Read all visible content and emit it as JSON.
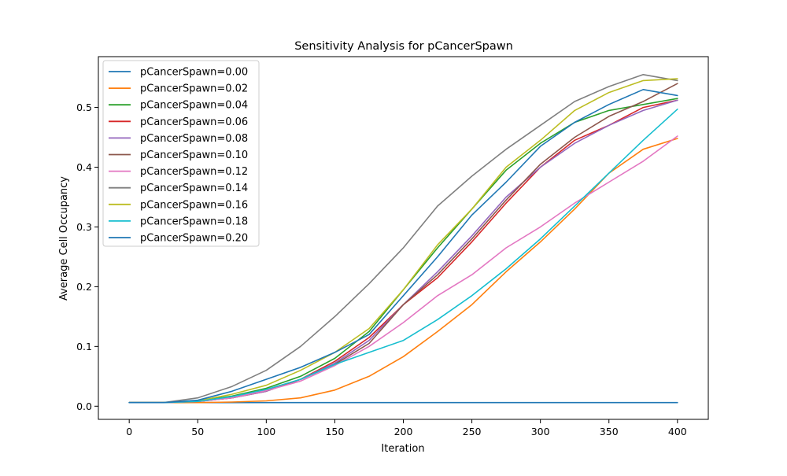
{
  "chart_data": {
    "type": "line",
    "title": "Sensitivity Analysis for pCancerSpawn",
    "xlabel": "Iteration",
    "ylabel": "Average Cell Occupancy",
    "xlim": [
      -22.5,
      422.5
    ],
    "ylim": [
      -0.022,
      0.585
    ],
    "xticks": [
      0,
      50,
      100,
      150,
      200,
      250,
      300,
      350,
      400
    ],
    "yticks": [
      0.0,
      0.1,
      0.2,
      0.3,
      0.4,
      0.5
    ],
    "xtick_labels": [
      "0",
      "50",
      "100",
      "150",
      "200",
      "250",
      "300",
      "350",
      "400"
    ],
    "ytick_labels": [
      "0.0",
      "0.1",
      "0.2",
      "0.3",
      "0.4",
      "0.5"
    ],
    "grid": false,
    "legend_position": "top-left",
    "x": [
      0,
      25,
      50,
      75,
      100,
      125,
      150,
      175,
      200,
      225,
      250,
      275,
      300,
      325,
      350,
      375,
      400
    ],
    "series": [
      {
        "name": "pCancerSpawn=0.00",
        "color": "#1f77b4",
        "values": [
          0.006,
          0.006,
          0.006,
          0.006,
          0.006,
          0.006,
          0.006,
          0.006,
          0.006,
          0.006,
          0.006,
          0.006,
          0.006,
          0.006,
          0.006,
          0.006,
          0.006
        ]
      },
      {
        "name": "pCancerSpawn=0.02",
        "color": "#ff7f0e",
        "values": [
          0.006,
          0.006,
          0.006,
          0.007,
          0.009,
          0.014,
          0.027,
          0.05,
          0.083,
          0.125,
          0.17,
          0.225,
          0.275,
          0.33,
          0.39,
          0.43,
          0.448
        ]
      },
      {
        "name": "pCancerSpawn=0.04",
        "color": "#2ca02c",
        "values": [
          0.006,
          0.006,
          0.009,
          0.017,
          0.03,
          0.05,
          0.08,
          0.125,
          0.195,
          0.265,
          0.33,
          0.395,
          0.44,
          0.475,
          0.495,
          0.505,
          0.515
        ]
      },
      {
        "name": "pCancerSpawn=0.06",
        "color": "#d62728",
        "values": [
          0.006,
          0.006,
          0.008,
          0.014,
          0.025,
          0.045,
          0.075,
          0.115,
          0.17,
          0.215,
          0.275,
          0.34,
          0.4,
          0.445,
          0.47,
          0.5,
          0.512
        ]
      },
      {
        "name": "pCancerSpawn=0.08",
        "color": "#9467bd",
        "values": [
          0.006,
          0.006,
          0.008,
          0.014,
          0.025,
          0.045,
          0.072,
          0.11,
          0.17,
          0.225,
          0.285,
          0.35,
          0.4,
          0.44,
          0.47,
          0.495,
          0.512
        ]
      },
      {
        "name": "pCancerSpawn=0.10",
        "color": "#8c564b",
        "values": [
          0.006,
          0.006,
          0.008,
          0.014,
          0.026,
          0.045,
          0.07,
          0.105,
          0.17,
          0.22,
          0.28,
          0.345,
          0.405,
          0.45,
          0.485,
          0.51,
          0.54
        ]
      },
      {
        "name": "pCancerSpawn=0.12",
        "color": "#e377c2",
        "values": [
          0.006,
          0.006,
          0.008,
          0.014,
          0.026,
          0.042,
          0.068,
          0.1,
          0.14,
          0.185,
          0.22,
          0.265,
          0.3,
          0.34,
          0.375,
          0.41,
          0.452
        ]
      },
      {
        "name": "pCancerSpawn=0.14",
        "color": "#7f7f7f",
        "values": [
          0.006,
          0.006,
          0.014,
          0.033,
          0.06,
          0.1,
          0.15,
          0.205,
          0.265,
          0.335,
          0.385,
          0.43,
          0.47,
          0.51,
          0.535,
          0.555,
          0.545
        ]
      },
      {
        "name": "pCancerSpawn=0.16",
        "color": "#bcbd22",
        "values": [
          0.006,
          0.006,
          0.009,
          0.02,
          0.035,
          0.06,
          0.09,
          0.13,
          0.195,
          0.27,
          0.33,
          0.4,
          0.445,
          0.495,
          0.525,
          0.545,
          0.548
        ]
      },
      {
        "name": "pCancerSpawn=0.18",
        "color": "#17becf",
        "values": [
          0.006,
          0.006,
          0.008,
          0.016,
          0.028,
          0.045,
          0.07,
          0.09,
          0.11,
          0.145,
          0.185,
          0.23,
          0.28,
          0.335,
          0.39,
          0.445,
          0.497
        ]
      },
      {
        "name": "pCancerSpawn=0.20",
        "color": "#1f77b4",
        "values": [
          0.006,
          0.006,
          0.01,
          0.025,
          0.045,
          0.065,
          0.09,
          0.12,
          0.185,
          0.25,
          0.32,
          0.375,
          0.435,
          0.475,
          0.505,
          0.53,
          0.52
        ]
      }
    ]
  }
}
